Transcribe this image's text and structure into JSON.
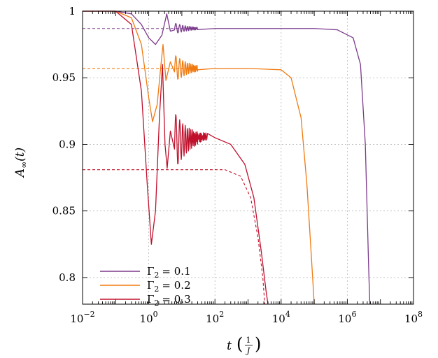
{
  "chart_data": {
    "type": "line",
    "xscale": "log",
    "xlim": [
      0.01,
      100000000
    ],
    "ylim": [
      0.78,
      1.0
    ],
    "grid": true,
    "legend_position": "bottom-left",
    "xlabel": {
      "main": "t",
      "unit_num": "1",
      "unit_den": "J"
    },
    "ylabel": {
      "main": "A",
      "sub": "∞",
      "arg": "(t)"
    },
    "xticks": [
      {
        "value": 0.01,
        "base": "10",
        "exp": "−2"
      },
      {
        "value": 1,
        "base": "10",
        "exp": "0"
      },
      {
        "value": 100,
        "base": "10",
        "exp": "2"
      },
      {
        "value": 10000,
        "base": "10",
        "exp": "4"
      },
      {
        "value": 1000000,
        "base": "10",
        "exp": "6"
      },
      {
        "value": 100000000,
        "base": "10",
        "exp": "8"
      }
    ],
    "yticks": [
      {
        "value": 1.0,
        "label": "1"
      },
      {
        "value": 0.95,
        "label": "0.95"
      },
      {
        "value": 0.9,
        "label": "0.9"
      },
      {
        "value": 0.85,
        "label": "0.85"
      },
      {
        "value": 0.8,
        "label": "0.8"
      }
    ],
    "series": [
      {
        "name": "Γ₂ = 0.1",
        "legend_symbol": "Γ",
        "legend_sub": "2",
        "legend_value": "= 0.1",
        "color": "#7b3a8c",
        "plateau": 0.987,
        "decay_tau": 3800000,
        "dip": {
          "t": 1.6,
          "y": 0.975
        },
        "oscillation_amp": 0.012,
        "solid_points": [
          [
            0.01,
            1.0
          ],
          [
            0.1,
            1.0
          ],
          [
            0.3,
            0.998
          ],
          [
            0.6,
            0.99
          ],
          [
            1.0,
            0.98
          ],
          [
            1.6,
            0.975
          ],
          [
            2.5,
            0.982
          ],
          [
            3.5,
            0.998
          ],
          [
            4.5,
            0.985
          ],
          [
            6,
            0.993
          ],
          [
            8,
            0.984
          ],
          [
            12,
            0.989
          ],
          [
            20,
            0.987
          ],
          [
            100,
            0.987
          ],
          [
            1000,
            0.987
          ],
          [
            100000,
            0.987
          ],
          [
            500000,
            0.986
          ],
          [
            1500000,
            0.98
          ],
          [
            2500000,
            0.96
          ],
          [
            3500000,
            0.9
          ],
          [
            4500000,
            0.8
          ],
          [
            4800000,
            0.78
          ]
        ],
        "dashed_points": [
          [
            0.01,
            0.987
          ],
          [
            20,
            0.987
          ]
        ]
      },
      {
        "name": "Γ₂ = 0.2",
        "legend_symbol": "Γ",
        "legend_sub": "2",
        "legend_value": "= 0.2",
        "color": "#f07a10",
        "plateau": 0.957,
        "decay_tau": 95000,
        "dip": {
          "t": 1.3,
          "y": 0.917
        },
        "oscillation_amp": 0.03,
        "solid_points": [
          [
            0.01,
            1.0
          ],
          [
            0.1,
            1.0
          ],
          [
            0.3,
            0.995
          ],
          [
            0.6,
            0.975
          ],
          [
            1.0,
            0.935
          ],
          [
            1.3,
            0.917
          ],
          [
            1.8,
            0.93
          ],
          [
            2.3,
            0.958
          ],
          [
            2.7,
            0.975
          ],
          [
            3.3,
            0.948
          ],
          [
            4.5,
            0.962
          ],
          [
            6,
            0.952
          ],
          [
            8,
            0.96
          ],
          [
            12,
            0.954
          ],
          [
            20,
            0.958
          ],
          [
            30,
            0.956
          ],
          [
            100,
            0.957
          ],
          [
            1000,
            0.957
          ],
          [
            10000,
            0.956
          ],
          [
            20000,
            0.95
          ],
          [
            40000,
            0.92
          ],
          [
            60000,
            0.87
          ],
          [
            80000,
            0.82
          ],
          [
            100000,
            0.78
          ]
        ],
        "dashed_points": [
          [
            0.01,
            0.957
          ],
          [
            30,
            0.957
          ]
        ]
      },
      {
        "name": "Γ₂ = 0.3",
        "legend_symbol": "Γ",
        "legend_sub": "2",
        "legend_value": "= 0.3",
        "color": "#c0102c",
        "plateau": 0.881,
        "decay_tau": 3500,
        "dip": {
          "t": 1.2,
          "y": 0.825
        },
        "oscillation_amp": 0.04,
        "solid_points": [
          [
            0.01,
            1.0
          ],
          [
            0.1,
            1.0
          ],
          [
            0.3,
            0.99
          ],
          [
            0.6,
            0.94
          ],
          [
            0.9,
            0.87
          ],
          [
            1.2,
            0.825
          ],
          [
            1.6,
            0.85
          ],
          [
            2.1,
            0.92
          ],
          [
            2.6,
            0.96
          ],
          [
            3.1,
            0.9
          ],
          [
            3.6,
            0.882
          ],
          [
            4.5,
            0.91
          ],
          [
            6,
            0.895
          ],
          [
            8,
            0.905
          ],
          [
            12,
            0.898
          ],
          [
            20,
            0.908
          ],
          [
            30,
            0.905
          ],
          [
            100,
            0.905
          ],
          [
            300,
            0.9
          ],
          [
            800,
            0.885
          ],
          [
            1500,
            0.86
          ],
          [
            2500,
            0.82
          ],
          [
            3500,
            0.79
          ],
          [
            4000,
            0.78
          ]
        ],
        "dashed_points": [
          [
            0.01,
            0.881
          ],
          [
            200,
            0.881
          ],
          [
            600,
            0.876
          ],
          [
            1200,
            0.86
          ],
          [
            2000,
            0.83
          ],
          [
            2800,
            0.8
          ],
          [
            3200,
            0.78
          ]
        ]
      }
    ]
  }
}
